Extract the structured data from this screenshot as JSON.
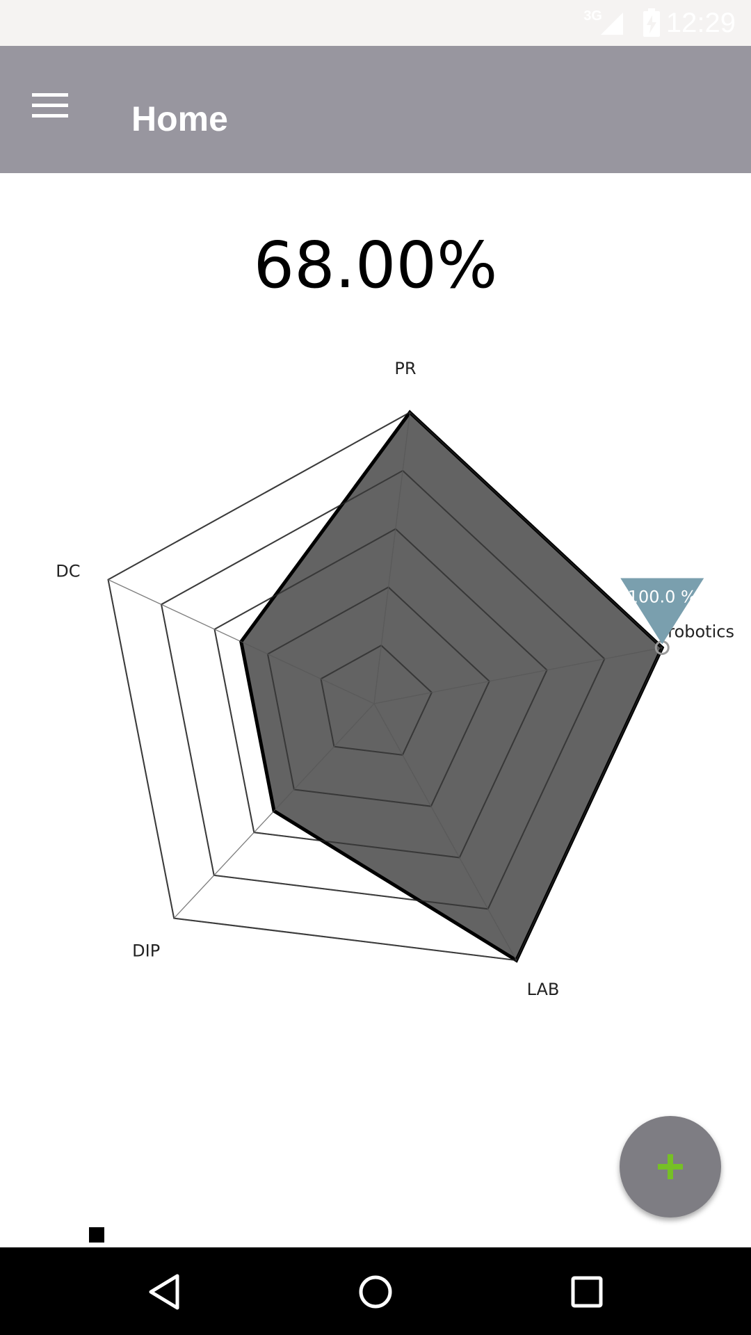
{
  "status_bar": {
    "network": "3G",
    "time": "12:29"
  },
  "app_bar": {
    "title": "Home",
    "menu_icon": "hamburger-menu-icon"
  },
  "score": {
    "value": "68.00%"
  },
  "chart_data": {
    "type": "radar",
    "axes": [
      "PR",
      "robotics",
      "LAB",
      "DIP",
      "DC"
    ],
    "values": [
      100,
      100,
      100,
      50,
      50
    ],
    "max": 100,
    "levels": 5,
    "highlight": {
      "axis": "robotics",
      "label": "100.0 %",
      "color": "#7a9fae"
    },
    "colors": {
      "fill": "#4d4d4d",
      "outline": "#000000",
      "grid": "#555555"
    },
    "grid": true
  },
  "fab": {
    "icon": "plus-icon",
    "icon_color": "#76c025"
  },
  "nav_bar": {
    "back_icon": "back-triangle-icon",
    "home_icon": "home-circle-icon",
    "recents_icon": "recents-square-icon"
  }
}
